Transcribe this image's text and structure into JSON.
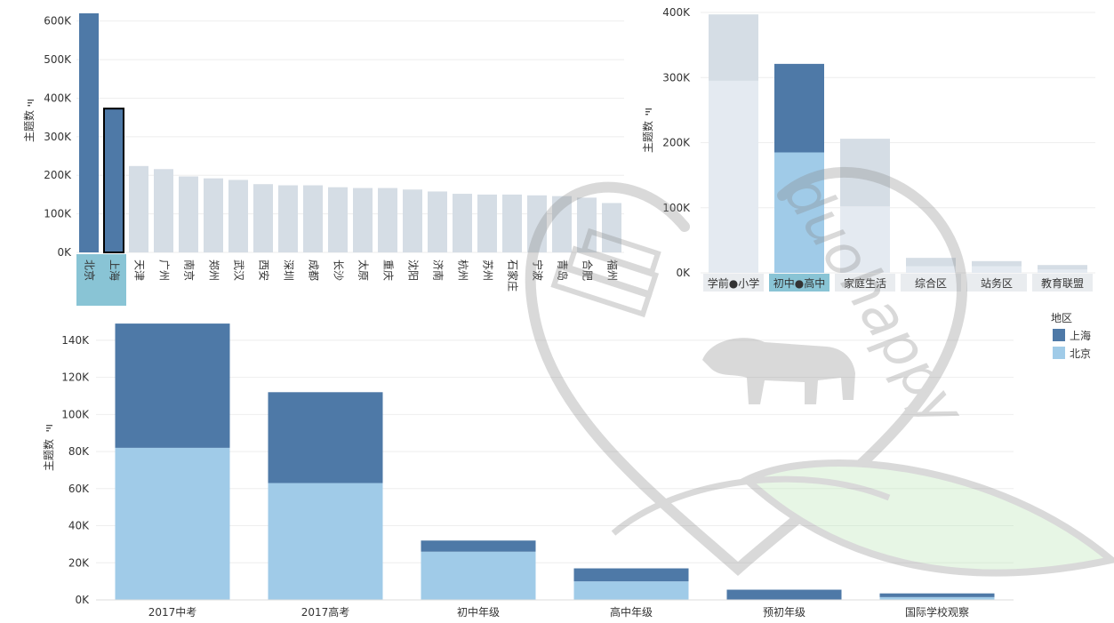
{
  "colors": {
    "shanghai": "#4e79a7",
    "beijing": "#a0cbe8",
    "muted": "#d5dde5",
    "muted_light": "#e4eaf1",
    "selected_bg": "#89c4d5",
    "cat_bg": "#e9ecef",
    "grid": "#eeeeee",
    "watermark": "#8a8a8a",
    "watermark_green": "#b5e6b1"
  },
  "watermark_text": "duohappy",
  "chart_data": [
    {
      "type": "bar",
      "ylabel": "主题数",
      "ylim": [
        0,
        620000
      ],
      "yticks": [
        0,
        100000,
        200000,
        300000,
        400000,
        500000,
        600000
      ],
      "ytick_labels": [
        "0K",
        "100K",
        "200K",
        "300K",
        "400K",
        "500K",
        "600K"
      ],
      "categories": [
        "北京",
        "上海",
        "天津",
        "广州",
        "南京",
        "郑州",
        "武汉",
        "西安",
        "深圳",
        "成都",
        "长沙",
        "太原",
        "重庆",
        "沈阳",
        "济南",
        "杭州",
        "苏州",
        "石家庄",
        "宁波",
        "青岛",
        "合肥",
        "福州"
      ],
      "values": [
        620000,
        373000,
        224000,
        216000,
        197000,
        192000,
        188000,
        177000,
        174000,
        174000,
        169000,
        167000,
        167000,
        163000,
        158000,
        152000,
        150000,
        150000,
        148000,
        146000,
        142000,
        128000
      ],
      "highlighted": [
        "北京",
        "上海"
      ],
      "selected": "上海"
    },
    {
      "type": "bar",
      "stacked": true,
      "ylabel": "主题数",
      "ylim": [
        0,
        400000
      ],
      "yticks": [
        0,
        100000,
        200000,
        300000,
        400000
      ],
      "ytick_labels": [
        "0K",
        "100K",
        "200K",
        "300K",
        "400K"
      ],
      "categories": [
        "学前●小学",
        "初中●高中",
        "家庭生活",
        "综合区",
        "站务区",
        "教育联盟"
      ],
      "highlighted": [
        "初中●高中"
      ],
      "series": [
        {
          "name": "北京",
          "values": [
            295000,
            185000,
            102000,
            10000,
            10000,
            5000
          ]
        },
        {
          "name": "上海",
          "values": [
            102000,
            136000,
            104000,
            13000,
            8000,
            7000
          ]
        }
      ]
    },
    {
      "type": "bar",
      "stacked": true,
      "ylabel": "主题数",
      "ylim": [
        0,
        150000
      ],
      "yticks": [
        0,
        20000,
        40000,
        60000,
        80000,
        100000,
        120000,
        140000
      ],
      "ytick_labels": [
        "0K",
        "20K",
        "40K",
        "60K",
        "80K",
        "100K",
        "120K",
        "140K"
      ],
      "categories": [
        "2017中考",
        "2017高考",
        "初中年级",
        "高中年级",
        "预初年级",
        "国际学校观察"
      ],
      "series": [
        {
          "name": "北京",
          "values": [
            82000,
            63000,
            26000,
            10000,
            0,
            1500
          ]
        },
        {
          "name": "上海",
          "values": [
            67000,
            49000,
            6000,
            7000,
            5500,
            2000
          ]
        }
      ],
      "legend": {
        "title": "地区",
        "position": "right",
        "items": [
          "上海",
          "北京"
        ]
      }
    }
  ]
}
